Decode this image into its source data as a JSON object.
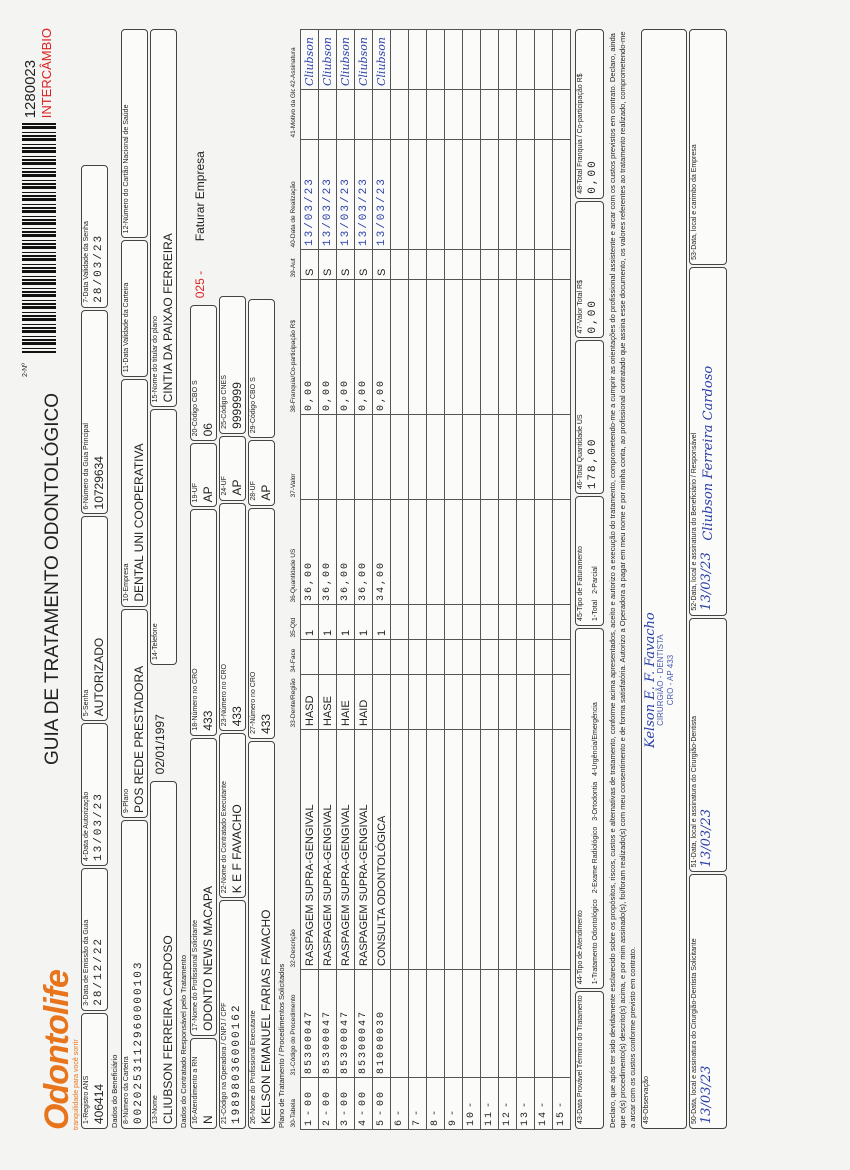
{
  "header": {
    "logo": "Odontolife",
    "tagline": "tranquilidade para você sorrir",
    "title": "GUIA DE TRATAMENTO ODONTOLÓGICO",
    "number_label": "2-Nº",
    "number": "1280023",
    "exchange": "INTERCÂMBIO"
  },
  "sections": {
    "beneficiary": "Dados do Beneficiário",
    "contractor": "Dados do Contratado Responsável pelo Tratamento",
    "plan": "Plano de Tratamento / Procedimentos Solicitados"
  },
  "fields": {
    "ans": {
      "label": "1-Registro ANS",
      "value": "406414"
    },
    "issue_date": {
      "label": "3-Data de Emissão da Guia",
      "value": "28/12/22"
    },
    "auth_date": {
      "label": "4-Data de Autorização",
      "value": "13/03/23"
    },
    "password": {
      "label": "5-Senha",
      "value": "AUTORIZADO"
    },
    "main_guide": {
      "label": "6-Número da Guia Principal",
      "value": "10729634"
    },
    "password_valid": {
      "label": "7-Data Validade da Senha",
      "value": "28/03/23"
    },
    "card": {
      "label": "8-Número da Carteira",
      "value": "0020253112960000103"
    },
    "plan": {
      "label": "9-Plano",
      "value": "POS REDE PRESTADORA"
    },
    "company": {
      "label": "10-Empresa",
      "value": "DENTAL UNI COOPERATIVA"
    },
    "card_valid": {
      "label": "11-Data Validade da Carteira"
    },
    "cns": {
      "label": "12-Número do Cartão Nacional de Saúde"
    },
    "name": {
      "label": "13-Nome",
      "value": "CLIUBSON FERREIRA CARDOSO"
    },
    "birth": {
      "value": "02/01/1997"
    },
    "phone": {
      "label": "14-Telefone"
    },
    "holder": {
      "label": "15-Nome do titular do plano",
      "value": "CINTIA DA PAIXAO FERREIRA"
    },
    "rn": {
      "label": "16-Atendimento a RN",
      "value": "N"
    },
    "requester": {
      "label": "17-Nome do Profissional Solicitante",
      "value": "ODONTO NEWS MACAPA"
    },
    "cro_req": {
      "label": "18-Número no CRO",
      "value": "433"
    },
    "uf_req": {
      "label": "19-UF",
      "value": "AP"
    },
    "cbo_req": {
      "label": "20-Código CBO S",
      "value": "06"
    },
    "billing_code": {
      "value": "025 -"
    },
    "billing": {
      "value": "Faturar Empresa"
    },
    "cnpj": {
      "label": "21-Código na Operadora / CNPJ / CPF",
      "value": "19898036000162"
    },
    "executor": {
      "label": "22-Nome do Contratado Executante",
      "value": "K E F FAVACHO"
    },
    "cro_exec": {
      "label": "23-Número no CRO",
      "value": "433"
    },
    "uf_exec": {
      "label": "24-UF",
      "value": "AP"
    },
    "cnes": {
      "label": "25-Código CNES",
      "value": "9999999"
    },
    "professional": {
      "label": "26-Nome do Profissional Executante",
      "value": "KELSON EMANUEL FARIAS FAVACHO"
    },
    "cro_prof": {
      "label": "27-Número no CRO",
      "value": "433"
    },
    "uf_prof": {
      "label": "28-UF",
      "value": "AP"
    },
    "cbo_prof": {
      "label": "29-Código CBO S"
    },
    "end_date": {
      "label": "43-Data Provável Término do Tratamento"
    },
    "service_type": {
      "label": "44-Tipo de Atendimento",
      "options": [
        "1-Tratamento Odontológico",
        "2-Exame Radiológico",
        "3-Ortodontia",
        "4-Urgência/Emergência"
      ]
    },
    "billing_type": {
      "label": "45-Tipo de Faturamento",
      "options": [
        "1-Total",
        "2-Parcial"
      ]
    },
    "total_us": {
      "label": "46-Total Quantidade US",
      "value": "178,00"
    },
    "total_value": {
      "label": "47-Valor Total R$",
      "value": "0,00"
    },
    "total_franchise": {
      "label": "48-Total Franquia / Co-participação R$",
      "value": "0,00"
    },
    "sig_requester": {
      "label": "50-Data, local e assinatura do Cirurgião-Dentista Solicitante",
      "value": "13/03/23"
    },
    "sig_dentist": {
      "label": "51-Data, local e assinatura do Cirurgião-Dentista",
      "value": "13/03/23"
    },
    "sig_beneficiary": {
      "label": "52-Data, local e assinatura do Beneficiário / Responsável",
      "value": "13/03/23"
    },
    "sig_company": {
      "label": "53-Data, local e carimbo da Empresa"
    }
  },
  "procedures": {
    "columns": [
      "30-Tabela",
      "31-Código do Procedimento",
      "32-Descrição",
      "33-Dente/Região",
      "34-Face",
      "35-Qtd",
      "36-Quantidade US",
      "37-Valor",
      "38-Franquia/Co-participação R$",
      "39-Aut",
      "40-Data de Realização",
      "41-Motivo da Glosa",
      "42-Assinatura"
    ],
    "row_labels": [
      "1",
      "2",
      "3",
      "4",
      "5",
      "6",
      "7",
      "8",
      "9",
      "10",
      "11",
      "12",
      "13",
      "14",
      "15"
    ],
    "rows": [
      {
        "table": "00",
        "code": "85300047",
        "description": "RASPAGEM SUPRA-GENGIVAL",
        "tooth": "HASD",
        "qty": "1",
        "us": "36,00",
        "franchise": "0,00",
        "aut": "S",
        "date": "13/03/23",
        "signature": "Cliubson"
      },
      {
        "table": "00",
        "code": "85300047",
        "description": "RASPAGEM SUPRA-GENGIVAL",
        "tooth": "HASE",
        "qty": "1",
        "us": "36,00",
        "franchise": "0,00",
        "aut": "S",
        "date": "13/03/23",
        "signature": "Cliubson"
      },
      {
        "table": "00",
        "code": "85300047",
        "description": "RASPAGEM SUPRA-GENGIVAL",
        "tooth": "HAIE",
        "qty": "1",
        "us": "36,00",
        "franchise": "0,00",
        "aut": "S",
        "date": "13/03/23",
        "signature": "Cliubson"
      },
      {
        "table": "00",
        "code": "85300047",
        "description": "RASPAGEM SUPRA-GENGIVAL",
        "tooth": "HAID",
        "qty": "1",
        "us": "36,00",
        "franchise": "0,00",
        "aut": "S",
        "date": "13/03/23",
        "signature": "Cliubson"
      },
      {
        "table": "00",
        "code": "81000030",
        "description": "CONSULTA ODONTOLÓGICA",
        "qty": "1",
        "us": "34,00",
        "franchise": "0,00",
        "aut": "S",
        "date": "13/03/23",
        "signature": "Cliubson"
      }
    ]
  },
  "declaration": "Declaro, que após ter sido devidamente esclarecido sobre os propósitos, riscos, custos e alternativas de tratamento, conforme acima apresentados, aceito e autorizo a execução do tratamento, comprometendo-me a cumprir as orientações do profissional assistente e arcar com os custos previstos em contrato. Declaro, ainda que o(s) procedimento(s) descrito(s) acima, e por mim assinado(s), foi/foram realizado(s) com meu consentimento e de forma satisfatória. Autorizo a Operadora a pagar em meu nome e por minha conta, ao profissional contratado que assina esse documento, os valores referentes ao tratamento realizado, comprometendo-me a arcar com os custos conforme previsto em contrato.",
  "observation": {
    "label": "49-Observação",
    "stamp_name": "Kelson E. F. Favacho",
    "stamp_role": "CIRURGIÃO - DENTISTA",
    "stamp_cro": "CRO - AP 433"
  },
  "beneficiary_signature": "Cliubson Ferreira Cardoso"
}
